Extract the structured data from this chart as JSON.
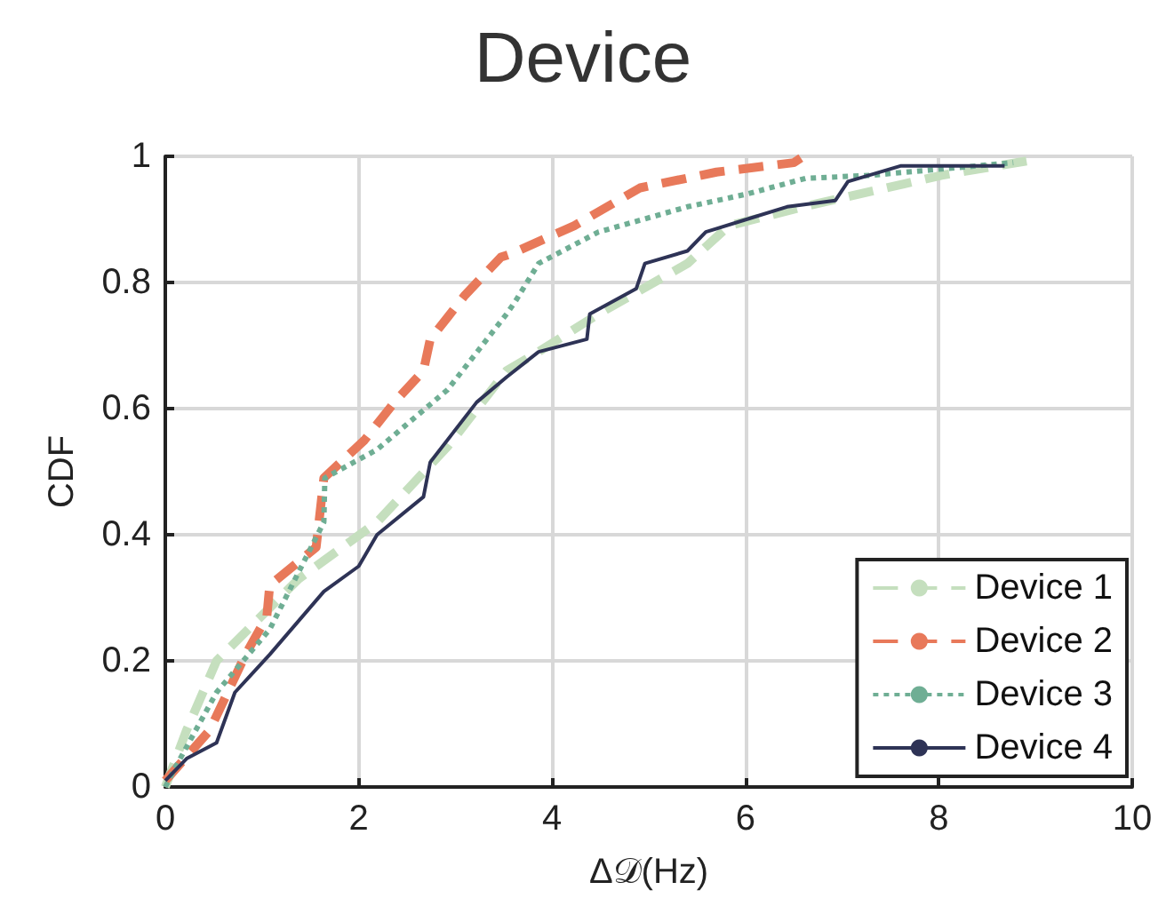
{
  "chart_data": {
    "type": "line",
    "title": "Device",
    "xlabel": "Δ𝒟(Hz)",
    "ylabel": "CDF",
    "xlim": [
      0,
      10
    ],
    "xticks": [
      0,
      2,
      4,
      6,
      8,
      10
    ],
    "ylim": [
      0,
      1
    ],
    "yticks": [
      0,
      0.2,
      0.4,
      0.6,
      0.8,
      1
    ],
    "grid": true,
    "legend": "bottom right",
    "marker": "none",
    "series": [
      {
        "name": "Device 1",
        "color": "#c5dfbe",
        "line_style": "dashed",
        "x": [
          0,
          0.22,
          0.53,
          1.38,
          2.19,
          2.92,
          3.53,
          3.86,
          4.48,
          5.4,
          5.83,
          6.6,
          8.03,
          9.0
        ],
        "values": [
          0,
          0.09,
          0.2,
          0.33,
          0.42,
          0.54,
          0.66,
          0.69,
          0.75,
          0.83,
          0.89,
          0.92,
          0.97,
          0.995
        ]
      },
      {
        "name": "Device 2",
        "color": "#e8795a",
        "line_style": "dashed",
        "x": [
          0,
          0.46,
          0.83,
          1.05,
          1.08,
          1.56,
          1.64,
          2.06,
          2.37,
          2.67,
          2.74,
          3.1,
          3.47,
          3.57,
          4.23,
          4.91,
          5.7,
          6.5,
          6.6
        ],
        "values": [
          0.01,
          0.09,
          0.21,
          0.27,
          0.32,
          0.38,
          0.49,
          0.55,
          0.61,
          0.66,
          0.71,
          0.78,
          0.84,
          0.845,
          0.89,
          0.95,
          0.975,
          0.99,
          1.0
        ]
      },
      {
        "name": "Device 3",
        "color": "#6fae94",
        "line_style": "dotted",
        "x": [
          0,
          0.1,
          0.53,
          1.08,
          1.64,
          1.65,
          2.19,
          2.92,
          3.53,
          3.62,
          3.86,
          4.48,
          5.4,
          6.01,
          6.62,
          7.3,
          8.77
        ],
        "values": [
          0,
          0.03,
          0.15,
          0.25,
          0.42,
          0.49,
          0.535,
          0.63,
          0.75,
          0.77,
          0.83,
          0.88,
          0.92,
          0.94,
          0.965,
          0.97,
          0.99
        ]
      },
      {
        "name": "Device 4",
        "color": "#2e3356",
        "line_style": "solid",
        "x": [
          0,
          0.22,
          0.53,
          0.72,
          1.08,
          1.64,
          2.0,
          2.19,
          2.67,
          2.74,
          3.22,
          3.53,
          3.86,
          4.36,
          4.39,
          4.87,
          4.96,
          5.4,
          5.59,
          6.01,
          6.43,
          6.93,
          7.06,
          7.61,
          8.68
        ],
        "values": [
          0.01,
          0.045,
          0.07,
          0.15,
          0.21,
          0.31,
          0.35,
          0.4,
          0.46,
          0.515,
          0.61,
          0.65,
          0.69,
          0.71,
          0.75,
          0.79,
          0.83,
          0.85,
          0.88,
          0.9,
          0.92,
          0.93,
          0.96,
          0.985,
          0.985
        ]
      }
    ]
  }
}
